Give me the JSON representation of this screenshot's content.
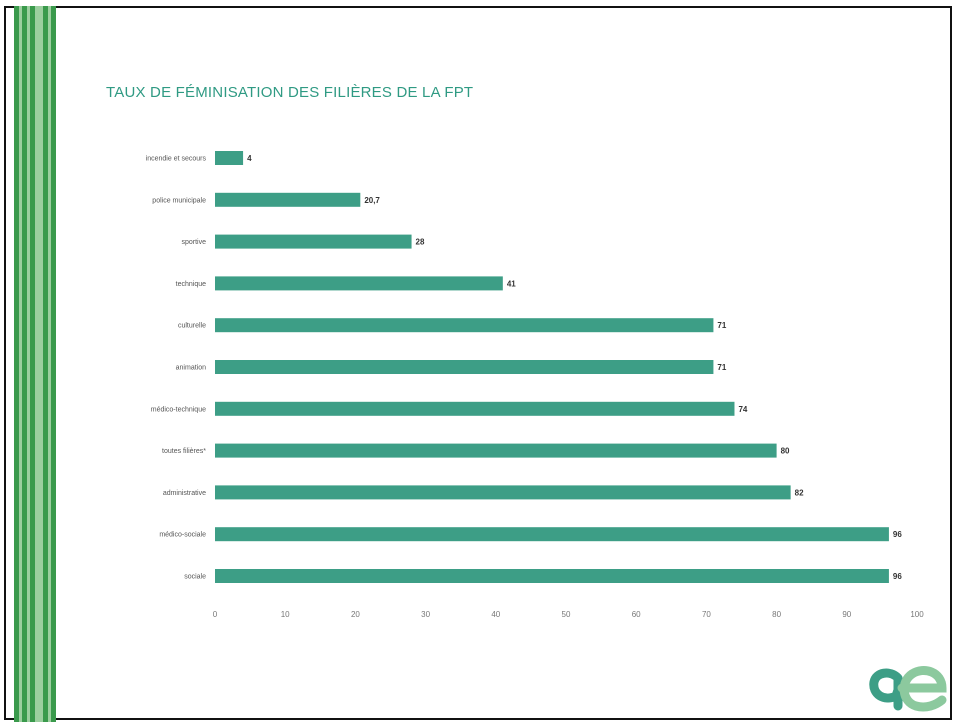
{
  "colors": {
    "bar": "#3d9e86",
    "title": "#2f9a83",
    "stripe_dark": "#3a9a4c",
    "stripe_light": "#9ccf9f",
    "logo_dark": "#3d9e86",
    "logo_light": "#8cc99e"
  },
  "logo": {
    "icon": "ae-ligature-logo-icon"
  },
  "chart_data": {
    "type": "bar",
    "orientation": "horizontal",
    "title": "TAUX DE FÉMINISATION DES FILIÈRES DE LA FPT",
    "xlabel": "",
    "ylabel": "",
    "xlim": [
      0,
      100
    ],
    "xticks": [
      0,
      10,
      20,
      30,
      40,
      50,
      60,
      70,
      80,
      90,
      100
    ],
    "grid": false,
    "legend": "none",
    "categories": [
      "incendie et secours",
      "police municipale",
      "sportive",
      "technique",
      "culturelle",
      "animation",
      "médico-technique",
      "toutes filières*",
      "administrative",
      "médico-sociale",
      "sociale"
    ],
    "values": [
      4,
      20.7,
      28,
      41,
      71,
      71,
      74,
      80,
      82,
      96,
      96
    ],
    "value_labels": [
      "4",
      "20,7",
      "28",
      "41",
      "71",
      "71",
      "74",
      "80",
      "82",
      "96",
      "96"
    ]
  }
}
